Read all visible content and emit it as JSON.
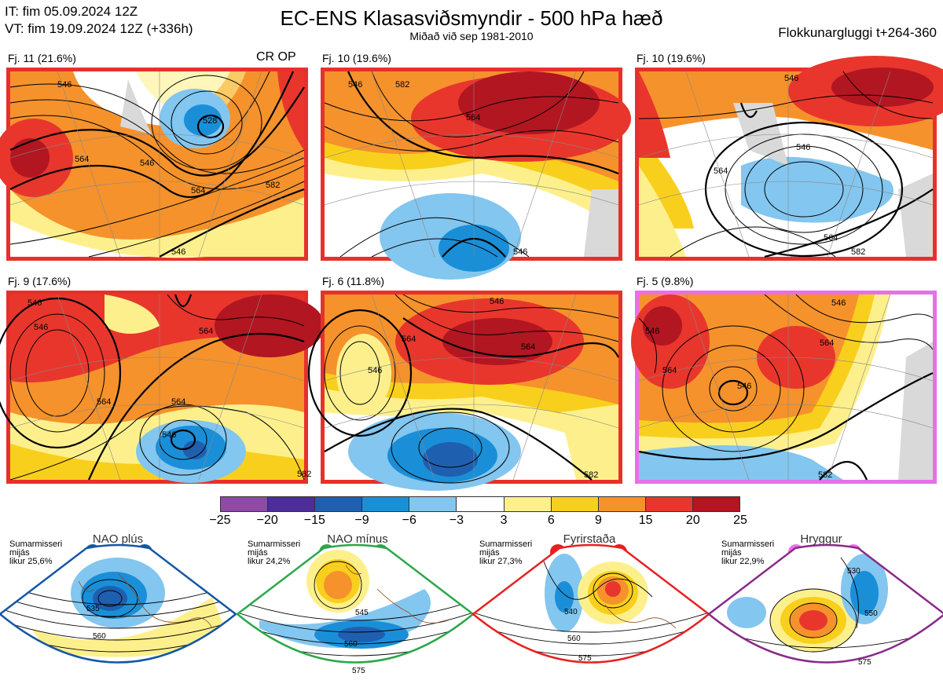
{
  "header": {
    "issue_time": "IT: fim 05.09.2024 12Z",
    "valid_time": "VT: fim 19.09.2024 12Z  (+336h)",
    "title": "EC-ENS Klasasviðsmyndir - 500 hPa hæð",
    "subtitle": "Miðað við sep 1981-2010",
    "window": "Flokkunargluggi t+264-360"
  },
  "clusters": [
    {
      "label": "Fj. 11 (21.6%)",
      "marker": "CR OP",
      "frame_color": "#e8302b",
      "contour_labels": [
        "546",
        "564",
        "528",
        "546",
        "564",
        "582",
        "546"
      ]
    },
    {
      "label": "Fj. 10 (19.6%)",
      "marker": "",
      "frame_color": "#e8302b",
      "contour_labels": [
        "564",
        "546",
        "546",
        "582"
      ]
    },
    {
      "label": "Fj. 10 (19.6%)",
      "marker": "",
      "frame_color": "#e8302b",
      "contour_labels": [
        "546",
        "564",
        "564",
        "546",
        "582"
      ]
    },
    {
      "label": "Fj. 9 (17.6%)",
      "marker": "",
      "frame_color": "#e8302b",
      "contour_labels": [
        "546",
        "546",
        "564",
        "564",
        "546",
        "564",
        "582"
      ]
    },
    {
      "label": "Fj. 6 (11.8%)",
      "marker": "",
      "frame_color": "#e8302b",
      "contour_labels": [
        "546",
        "546",
        "564",
        "564",
        "582"
      ]
    },
    {
      "label": "Fj. 5 (9.8%)",
      "marker": "",
      "frame_color": "#e86fe8",
      "contour_labels": [
        "546",
        "546",
        "564",
        "564",
        "546",
        "582"
      ]
    }
  ],
  "colorbar": {
    "ticks": [
      "−25",
      "−20",
      "−15",
      "−9",
      "−6",
      "−3",
      "3",
      "6",
      "9",
      "15",
      "20",
      "25"
    ],
    "colors": [
      "#8e4aa5",
      "#4c2d9a",
      "#1f5fb0",
      "#1a8fd8",
      "#83c6ef",
      "#ffffff",
      "#fdf08c",
      "#f9cf1d",
      "#f5922c",
      "#e8362d",
      "#b21621"
    ]
  },
  "regimes": [
    {
      "name": "NAO plús",
      "note": [
        "Sumarmisseri",
        "mijás",
        "likur 25,6%"
      ],
      "dot_color": "#1457a5",
      "frame_color": "#1457a5",
      "contour_labels": [
        "535",
        "560"
      ]
    },
    {
      "name": "NAO mínus",
      "note": [
        "Sumarmisseri",
        "mijás",
        "likur 24,2%"
      ],
      "dot_color": "#2aa84a",
      "frame_color": "#2aa84a",
      "contour_labels": [
        "545",
        "560",
        "575"
      ]
    },
    {
      "name": "Fyrirstaða",
      "note": [
        "Sumarmisseri",
        "mijás",
        "likur 27,3%"
      ],
      "dot_color": "#e82020",
      "frame_color": "#e82020",
      "contour_labels": [
        "540",
        "560",
        "575"
      ]
    },
    {
      "name": "Hryggur",
      "note": [
        "Sumarmisseri",
        "mijás",
        "likur 22,9%"
      ],
      "dot_color": "#ee6fee",
      "frame_color": "#8a2a8a",
      "contour_labels": [
        "530",
        "550",
        "575"
      ]
    }
  ]
}
